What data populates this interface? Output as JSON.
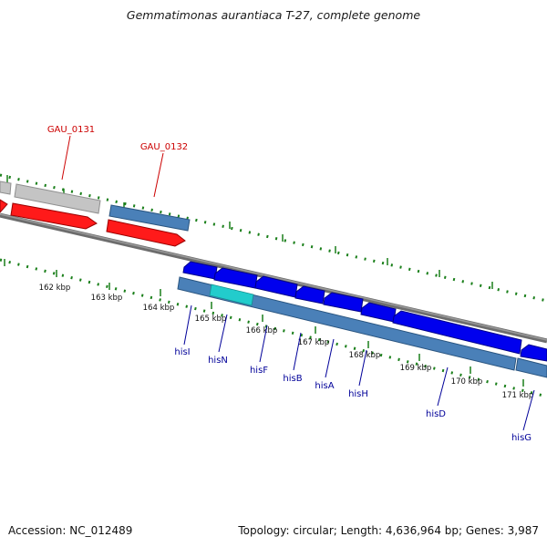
{
  "title": "Gemmatimonas aurantiaca T-27, complete genome",
  "footer": {
    "accession": "Accession: NC_012489",
    "summary": "Topology: circular; Length: 4,636,964 bp; Genes: 3,987"
  },
  "colors": {
    "background": "#ffffff",
    "backbone": "#7a7a7a",
    "tick": "#1a7f1a",
    "gene_red": "#ff0000",
    "gene_grey": "#c0c0c0",
    "gene_blue": "#0000ee",
    "cds_steelblue": "#4a80b8",
    "cds_cyan": "#22cccc",
    "label_red": "#cc0000",
    "label_blue": "#000099"
  },
  "kbp_labels": [
    "162 kbp",
    "163 kbp",
    "164 kbp",
    "165 kbp",
    "166 kbp",
    "167 kbp",
    "168 kbp",
    "169 kbp",
    "170 kbp",
    "171 kbp"
  ],
  "upper_genes": [
    {
      "label": "GAU_0131",
      "color": "red"
    },
    {
      "label": "GAU_0132",
      "color": "red"
    }
  ],
  "his_genes": [
    {
      "label": "hisI"
    },
    {
      "label": "hisN"
    },
    {
      "label": "hisF"
    },
    {
      "label": "hisB"
    },
    {
      "label": "hisA"
    },
    {
      "label": "hisH"
    },
    {
      "label": "hisD"
    },
    {
      "label": "hisG"
    }
  ]
}
